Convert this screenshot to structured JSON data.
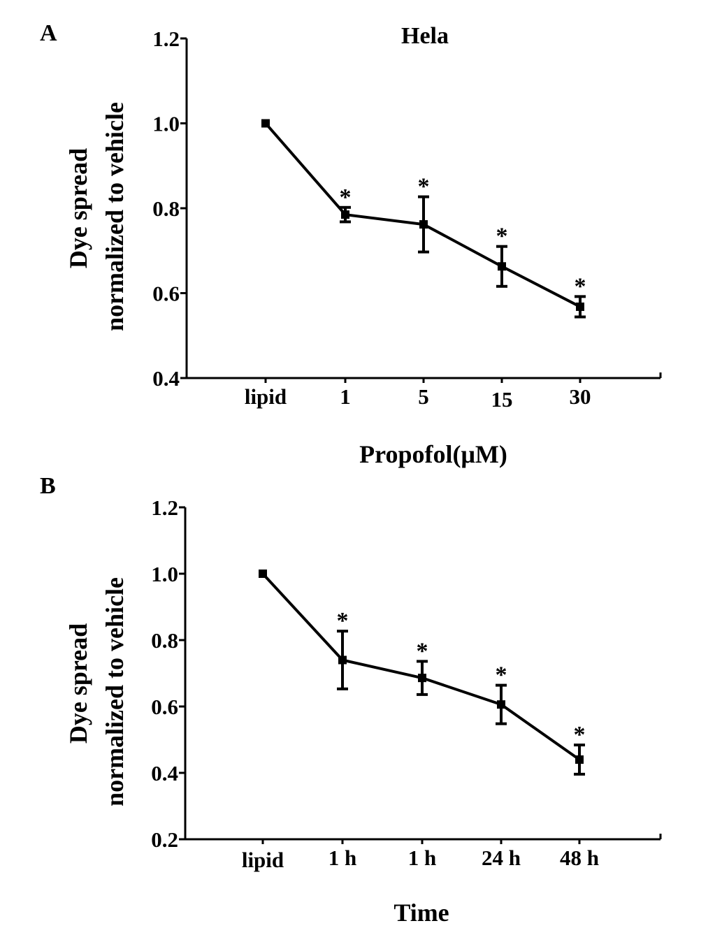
{
  "chart_data": [
    {
      "panel": "A",
      "type": "line",
      "title": "Hela",
      "xlabel": "Propofol(μM)",
      "ylabel": [
        "Dye spread",
        "normalized to vehicle"
      ],
      "categories": [
        "lipid",
        "1",
        "5",
        "15",
        "30"
      ],
      "ylim": [
        0.4,
        1.2
      ],
      "yticks": [
        "0.4",
        "0.6",
        "0.8",
        "1.0",
        "1.2"
      ],
      "series": [
        {
          "values": [
            1.0,
            0.785,
            0.762,
            0.663,
            0.568
          ],
          "errors": [
            0.0,
            0.017,
            0.065,
            0.047,
            0.024
          ],
          "significant": [
            false,
            true,
            true,
            true,
            true
          ]
        }
      ],
      "significance_marker": "*",
      "grid": false,
      "legend": "none"
    },
    {
      "panel": "B",
      "type": "line",
      "title": "",
      "xlabel": "Time",
      "ylabel": [
        "Dye spread",
        "normalized to vehicle"
      ],
      "categories": [
        "lipid",
        "1 h",
        "1 h",
        "24 h",
        "48 h"
      ],
      "ylim": [
        0.2,
        1.2
      ],
      "yticks": [
        "0.2",
        "0.4",
        "0.6",
        "0.8",
        "1.0",
        "1.2"
      ],
      "series": [
        {
          "values": [
            1.0,
            0.74,
            0.686,
            0.606,
            0.44
          ],
          "errors": [
            0.0,
            0.087,
            0.05,
            0.058,
            0.044
          ],
          "significant": [
            false,
            true,
            true,
            true,
            true
          ]
        }
      ],
      "significance_marker": "*",
      "grid": false,
      "legend": "none"
    }
  ]
}
